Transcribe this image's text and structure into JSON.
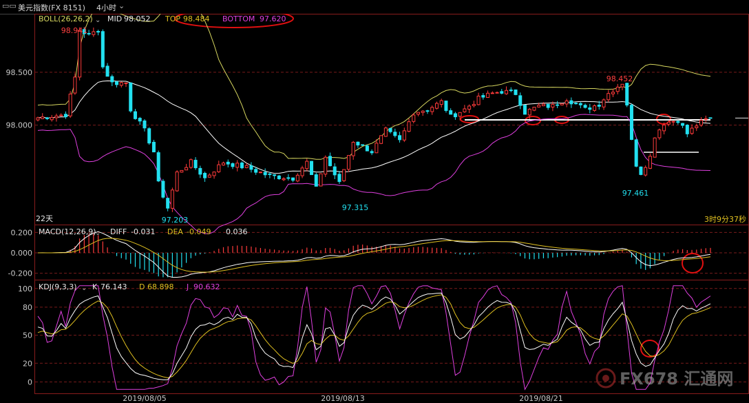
{
  "window": {
    "title": "美元指数(FX 8151)",
    "timeframe": "4小时",
    "colors": {
      "bg": "#000000",
      "bull": "#ff3b3b",
      "bear": "#22e0f0",
      "mid": "#ffffff",
      "band_upper": "#d8d860",
      "band_lower": "#e040e0",
      "grid": "#7a1b1b",
      "axis": "#7a1b1b"
    }
  },
  "main_panel": {
    "indicator": "BOLL(26,26,2)",
    "mid_label": "MID",
    "mid_value": "98.052",
    "top_label": "TOP",
    "top_value": "98.484",
    "bottom_label": "BOTTOM",
    "bottom_value": "97.620",
    "y_ticks": [
      "98.500",
      "98.000"
    ],
    "annotations": [
      "98.941",
      "97.203",
      "97.315",
      "98.452",
      "97.461"
    ],
    "period_label": "22天",
    "countdown": "3时9分37秒"
  },
  "macd_panel": {
    "indicator": "MACD(12,26,9)",
    "diff_label": "DIFF",
    "diff_value": "-0.031",
    "dea_label": "DEA",
    "dea_value": "-0.049",
    "macd_value": "0.036",
    "y_ticks": [
      "0.200",
      "0.000",
      "-0.200"
    ]
  },
  "kdj_panel": {
    "indicator": "KDJ(9,3,3)",
    "k_label": "K",
    "k_value": "76.143",
    "d_label": "D",
    "d_value": "68.898",
    "j_label": "J",
    "j_value": "90.632",
    "y_ticks": [
      "100",
      "80",
      "50",
      "20",
      "0"
    ]
  },
  "x_axis": {
    "dates": [
      "2019/08/05",
      "2019/08/13",
      "2019/08/21"
    ]
  },
  "watermark": {
    "text": "FX678 汇通网"
  },
  "chart_data": [
    {
      "type": "candlestick",
      "title": "美元指数(FX 8151) 4小时",
      "ylim": [
        97.1,
        99.0
      ],
      "keyframes": [
        [
          0,
          98.07
        ],
        [
          6,
          98.1
        ],
        [
          8,
          98.45
        ],
        [
          9,
          98.9
        ],
        [
          11,
          98.85
        ],
        [
          13,
          98.9
        ],
        [
          14,
          98.55
        ],
        [
          16,
          98.4
        ],
        [
          19,
          98.4
        ],
        [
          20,
          98.15
        ],
        [
          23,
          97.95
        ],
        [
          25,
          97.75
        ],
        [
          26,
          97.45
        ],
        [
          28,
          97.22
        ],
        [
          30,
          97.55
        ],
        [
          33,
          97.65
        ],
        [
          36,
          97.5
        ],
        [
          40,
          97.65
        ],
        [
          45,
          97.6
        ],
        [
          50,
          97.52
        ],
        [
          55,
          97.5
        ],
        [
          58,
          97.65
        ],
        [
          60,
          97.4
        ],
        [
          62,
          97.7
        ],
        [
          65,
          97.45
        ],
        [
          68,
          97.85
        ],
        [
          72,
          97.75
        ],
        [
          75,
          97.95
        ],
        [
          78,
          97.85
        ],
        [
          81,
          98.12
        ],
        [
          84,
          98.15
        ],
        [
          87,
          98.22
        ],
        [
          89,
          98.08
        ],
        [
          92,
          98.15
        ],
        [
          95,
          98.25
        ],
        [
          98,
          98.3
        ],
        [
          100,
          98.32
        ],
        [
          103,
          98.3
        ],
        [
          105,
          98.12
        ],
        [
          108,
          98.18
        ],
        [
          111,
          98.18
        ],
        [
          114,
          98.25
        ],
        [
          116,
          98.2
        ],
        [
          118,
          98.15
        ],
        [
          121,
          98.2
        ],
        [
          123,
          98.3
        ],
        [
          126,
          98.4
        ],
        [
          127,
          98.2
        ],
        [
          128,
          97.85
        ],
        [
          129,
          97.63
        ],
        [
          130,
          97.55
        ],
        [
          132,
          97.7
        ],
        [
          133,
          97.9
        ],
        [
          135,
          98.02
        ],
        [
          138,
          98.05
        ],
        [
          140,
          97.92
        ],
        [
          142,
          98.0
        ],
        [
          144,
          98.05
        ],
        [
          145,
          98.06
        ]
      ],
      "annotations": [
        {
          "label": "98.941",
          "index": 9
        },
        {
          "label": "97.203",
          "index": 28
        },
        {
          "label": "97.315",
          "index": 62
        },
        {
          "label": "98.452",
          "index": 125
        },
        {
          "label": "97.461",
          "index": 130
        }
      ],
      "indicators": {
        "bollinger": {
          "period": 26,
          "k": 2
        }
      }
    },
    {
      "type": "bar+line",
      "title": "MACD(12,26,9)",
      "series": [
        {
          "name": "DIFF"
        },
        {
          "name": "DEA"
        },
        {
          "name": "MACD"
        }
      ],
      "ylim": [
        -0.25,
        0.25
      ]
    },
    {
      "type": "line",
      "title": "KDJ(9,3,3)",
      "series": [
        {
          "name": "K"
        },
        {
          "name": "D"
        },
        {
          "name": "J"
        }
      ],
      "ylim": [
        -10,
        105
      ]
    }
  ]
}
